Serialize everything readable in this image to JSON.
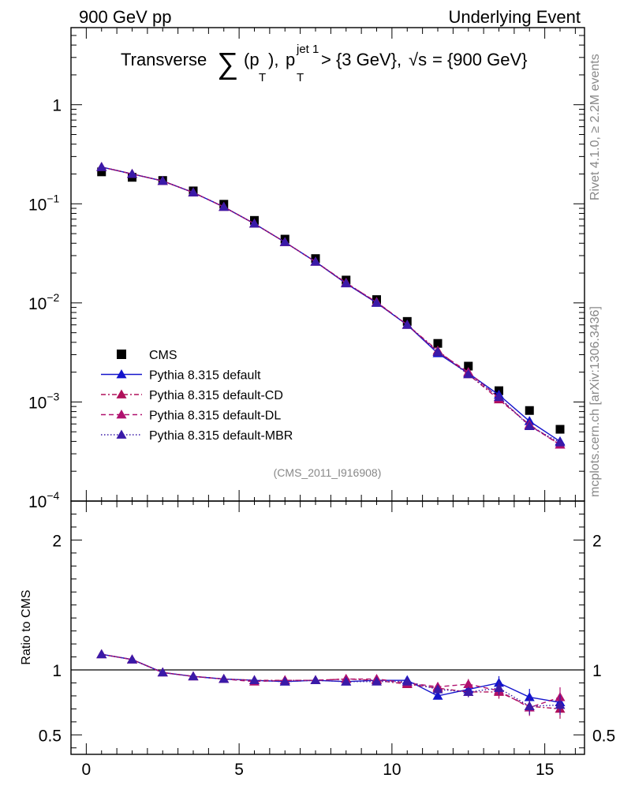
{
  "header": {
    "left": "900 GeV pp",
    "right": "Underlying Event"
  },
  "title": {
    "prefix": "Transverse",
    "sum_symbol": "∑",
    "pt": "(p",
    "pt_sub": "T",
    "pt_close": "),",
    "pt2": "p",
    "pt2_sub": "T",
    "pt2_sup": "jet 1",
    "cut": "> {3 GeV},",
    "sqrt": "√s",
    "energy": "= {900 GeV}"
  },
  "side_labels": {
    "rivet": "Rivet 4.1.0, ≥ 2.2M events",
    "mcplots": "mcplots.cern.ch [arXiv:1306.3436]"
  },
  "watermark": "(CMS_2011_I916908)",
  "colors": {
    "cms": "#000000",
    "default": "#1414cc",
    "cd": "#b0105a",
    "dl": "#b0106e",
    "mbr": "#3a1aa8"
  },
  "chart_data": [
    {
      "type": "line",
      "panel": "main",
      "yscale": "log",
      "xlim": [
        -0.5,
        16.3
      ],
      "ylim": [
        0.0001,
        6
      ],
      "ytick_labels": [
        "1",
        "10^-1",
        "10^-2",
        "10^-3",
        "10^-4"
      ],
      "ytick_values": [
        1,
        0.1,
        0.01,
        0.001,
        0.0001
      ],
      "x": [
        0.5,
        1.5,
        2.5,
        3.5,
        4.5,
        5.5,
        6.5,
        7.5,
        8.5,
        9.5,
        10.5,
        11.5,
        12.5,
        13.5,
        14.5,
        15.5
      ],
      "series": [
        {
          "name": "CMS",
          "style": "markers",
          "values": [
            0.21,
            0.185,
            0.172,
            0.135,
            0.099,
            0.068,
            0.044,
            0.028,
            0.017,
            0.0108,
            0.0065,
            0.0039,
            0.0023,
            0.0013,
            0.00082,
            0.00053
          ]
        },
        {
          "name": "Pythia 8.315 default",
          "style": "solid",
          "values": [
            0.235,
            0.2,
            0.17,
            0.13,
            0.093,
            0.063,
            0.041,
            0.026,
            0.0157,
            0.01,
            0.006,
            0.0031,
            0.00195,
            0.00118,
            0.00064,
            0.0004
          ]
        },
        {
          "name": "Pythia 8.315 default-CD",
          "style": "dashdot",
          "values": [
            0.235,
            0.2,
            0.17,
            0.13,
            0.093,
            0.063,
            0.041,
            0.026,
            0.016,
            0.0101,
            0.006,
            0.0033,
            0.0019,
            0.00106,
            0.00059,
            0.00037
          ]
        },
        {
          "name": "Pythia 8.315 default-DL",
          "style": "dashed",
          "values": [
            0.235,
            0.2,
            0.17,
            0.13,
            0.093,
            0.063,
            0.041,
            0.026,
            0.0158,
            0.0102,
            0.006,
            0.0032,
            0.002,
            0.0011,
            0.00058,
            0.00037
          ]
        },
        {
          "name": "Pythia 8.315 default-MBR",
          "style": "dotted",
          "values": [
            0.235,
            0.2,
            0.17,
            0.13,
            0.093,
            0.063,
            0.041,
            0.026,
            0.0158,
            0.01,
            0.006,
            0.0032,
            0.0019,
            0.00112,
            0.00057,
            0.00039
          ]
        }
      ]
    },
    {
      "type": "line",
      "panel": "ratio",
      "ylabel": "Ratio to CMS",
      "ylim": [
        0.35,
        2.3
      ],
      "xlim": [
        -0.5,
        16.3
      ],
      "ytick_labels": [
        "2",
        "1",
        "0.5"
      ],
      "ytick_values": [
        2,
        1,
        0.5
      ],
      "xtick_labels": [
        "0",
        "5",
        "10",
        "15"
      ],
      "xtick_values": [
        0,
        5,
        10,
        15
      ],
      "x": [
        0.5,
        1.5,
        2.5,
        3.5,
        4.5,
        5.5,
        6.5,
        7.5,
        8.5,
        9.5,
        10.5,
        11.5,
        12.5,
        13.5,
        14.5,
        15.5
      ],
      "series": [
        {
          "name": "Pythia 8.315 default",
          "style": "solid",
          "values": [
            1.12,
            1.08,
            0.98,
            0.95,
            0.93,
            0.92,
            0.91,
            0.92,
            0.91,
            0.92,
            0.92,
            0.8,
            0.85,
            0.9,
            0.79,
            0.75
          ]
        },
        {
          "name": "Pythia 8.315 default-CD",
          "style": "dashdot",
          "values": [
            1.12,
            1.08,
            0.98,
            0.95,
            0.93,
            0.92,
            0.92,
            0.92,
            0.93,
            0.92,
            0.89,
            0.86,
            0.83,
            0.83,
            0.72,
            0.7
          ]
        },
        {
          "name": "Pythia 8.315 default-DL",
          "style": "dashed",
          "values": [
            1.12,
            1.08,
            0.98,
            0.95,
            0.93,
            0.91,
            0.92,
            0.92,
            0.93,
            0.93,
            0.9,
            0.87,
            0.89,
            0.84,
            0.71,
            0.79
          ]
        },
        {
          "name": "Pythia 8.315 default-MBR",
          "style": "dotted",
          "values": [
            1.12,
            1.08,
            0.98,
            0.95,
            0.93,
            0.92,
            0.91,
            0.92,
            0.91,
            0.91,
            0.91,
            0.85,
            0.83,
            0.86,
            0.72,
            0.73
          ]
        }
      ]
    }
  ]
}
